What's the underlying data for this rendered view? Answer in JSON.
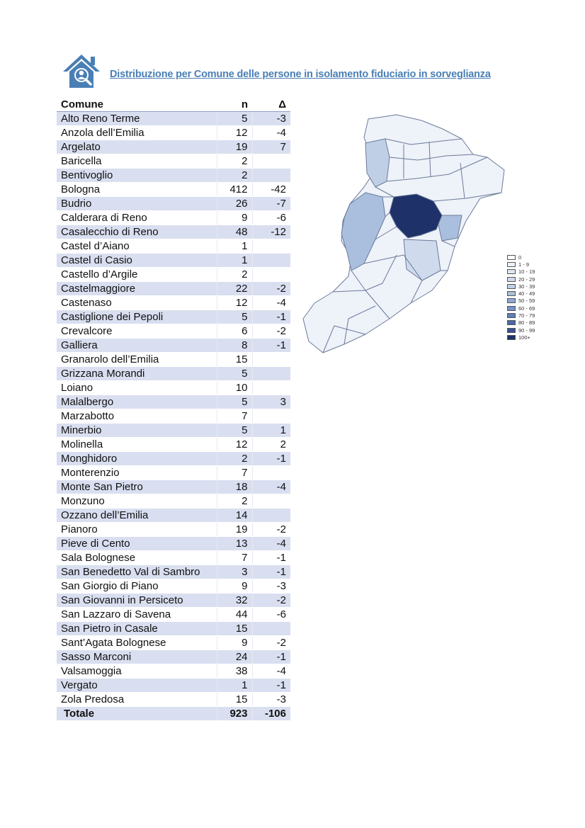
{
  "header": {
    "icon": "house-person-search-icon",
    "title": "Distribuzione per Comune delle persone in isolamento fiduciario in sorveglianza"
  },
  "table": {
    "columns": [
      "Comune",
      "n",
      "Δ"
    ],
    "rows": [
      {
        "comune": "Alto Reno Terme",
        "n": "5",
        "delta": "-3"
      },
      {
        "comune": "Anzola dell’Emilia",
        "n": "12",
        "delta": "-4"
      },
      {
        "comune": "Argelato",
        "n": "19",
        "delta": "7"
      },
      {
        "comune": "Baricella",
        "n": "2",
        "delta": ""
      },
      {
        "comune": "Bentivoglio",
        "n": "2",
        "delta": ""
      },
      {
        "comune": "Bologna",
        "n": "412",
        "delta": "-42"
      },
      {
        "comune": "Budrio",
        "n": "26",
        "delta": "-7"
      },
      {
        "comune": "Calderara di Reno",
        "n": "9",
        "delta": "-6"
      },
      {
        "comune": "Casalecchio di Reno",
        "n": "48",
        "delta": "-12"
      },
      {
        "comune": "Castel d’Aiano",
        "n": "1",
        "delta": ""
      },
      {
        "comune": "Castel di Casio",
        "n": "1",
        "delta": ""
      },
      {
        "comune": "Castello d’Argile",
        "n": "2",
        "delta": ""
      },
      {
        "comune": "Castelmaggiore",
        "n": "22",
        "delta": "-2"
      },
      {
        "comune": "Castenaso",
        "n": "12",
        "delta": "-4"
      },
      {
        "comune": "Castiglione dei Pepoli",
        "n": "5",
        "delta": "-1"
      },
      {
        "comune": "Crevalcore",
        "n": "6",
        "delta": "-2"
      },
      {
        "comune": "Galliera",
        "n": "8",
        "delta": "-1"
      },
      {
        "comune": "Granarolo dell’Emilia",
        "n": "15",
        "delta": ""
      },
      {
        "comune": "Grizzana Morandi",
        "n": "5",
        "delta": ""
      },
      {
        "comune": "Loiano",
        "n": "10",
        "delta": ""
      },
      {
        "comune": "Malalbergo",
        "n": "5",
        "delta": "3"
      },
      {
        "comune": "Marzabotto",
        "n": "7",
        "delta": ""
      },
      {
        "comune": "Minerbio",
        "n": "5",
        "delta": "1"
      },
      {
        "comune": "Molinella",
        "n": "12",
        "delta": "2"
      },
      {
        "comune": "Monghidoro",
        "n": "2",
        "delta": "-1"
      },
      {
        "comune": "Monterenzio",
        "n": "7",
        "delta": ""
      },
      {
        "comune": "Monte San Pietro",
        "n": "18",
        "delta": "-4"
      },
      {
        "comune": "Monzuno",
        "n": "2",
        "delta": ""
      },
      {
        "comune": "Ozzano dell’Emilia",
        "n": "14",
        "delta": ""
      },
      {
        "comune": "Pianoro",
        "n": "19",
        "delta": "-2"
      },
      {
        "comune": "Pieve di Cento",
        "n": "13",
        "delta": "-4"
      },
      {
        "comune": "Sala Bolognese",
        "n": "7",
        "delta": "-1"
      },
      {
        "comune": "San Benedetto Val di Sambro",
        "n": "3",
        "delta": "-1"
      },
      {
        "comune": "San Giorgio di Piano",
        "n": "9",
        "delta": "-3"
      },
      {
        "comune": "San Giovanni in Persiceto",
        "n": "32",
        "delta": "-2"
      },
      {
        "comune": "San Lazzaro di Savena",
        "n": "44",
        "delta": "-6"
      },
      {
        "comune": "San Pietro in Casale",
        "n": "15",
        "delta": ""
      },
      {
        "comune": "Sant’Agata Bolognese",
        "n": "9",
        "delta": "-2"
      },
      {
        "comune": "Sasso Marconi",
        "n": "24",
        "delta": "-1"
      },
      {
        "comune": "Valsamoggia",
        "n": "38",
        "delta": "-4"
      },
      {
        "comune": "Vergato",
        "n": "1",
        "delta": "-1"
      },
      {
        "comune": "Zola Predosa",
        "n": "15",
        "delta": "-3"
      }
    ],
    "total": {
      "label": "Totale",
      "n": "923",
      "delta": "-106"
    }
  },
  "legend": {
    "items": [
      {
        "label": "0",
        "color": "#ffffff"
      },
      {
        "label": "1 - 9",
        "color": "#eef2f9"
      },
      {
        "label": "10 - 19",
        "color": "#dfe6f2"
      },
      {
        "label": "20 - 29",
        "color": "#cfdaec"
      },
      {
        "label": "30 - 39",
        "color": "#bfcfe6"
      },
      {
        "label": "40 - 49",
        "color": "#a9bfdd"
      },
      {
        "label": "50 - 59",
        "color": "#8eaad2"
      },
      {
        "label": "60 - 69",
        "color": "#7594c5"
      },
      {
        "label": "70 - 79",
        "color": "#5e7fb8"
      },
      {
        "label": "80 - 89",
        "color": "#4a69a6"
      },
      {
        "label": "90 - 99",
        "color": "#36528f"
      },
      {
        "label": "100+",
        "color": "#1e3269"
      }
    ]
  },
  "colors": {
    "accent": "#4a7fb5",
    "row_stripe": "#d9dff0",
    "map_border": "#6b7a99"
  }
}
